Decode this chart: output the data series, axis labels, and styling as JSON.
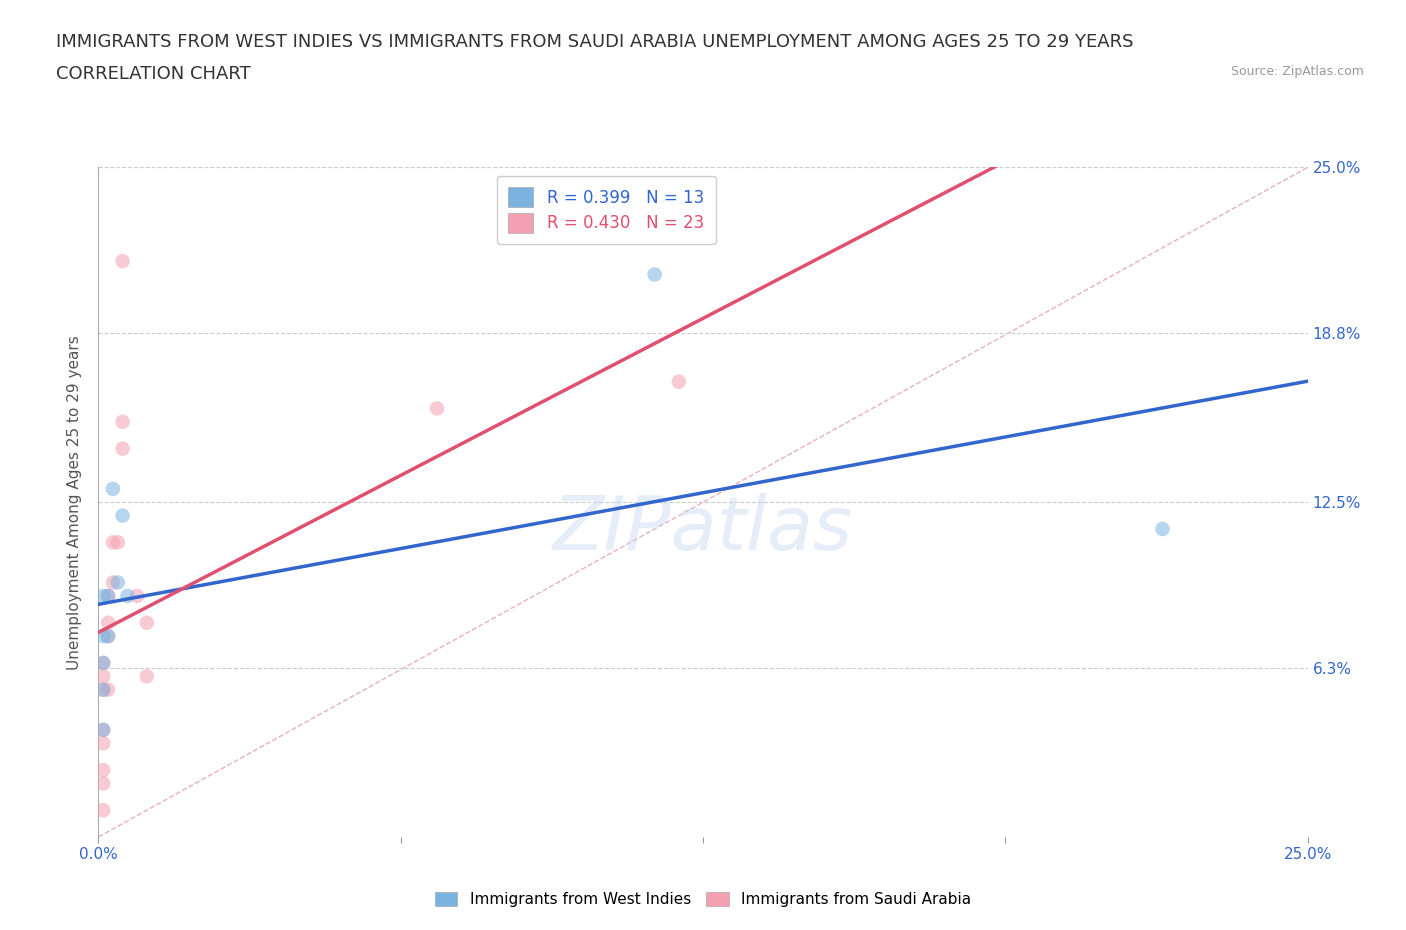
{
  "title_line1": "IMMIGRANTS FROM WEST INDIES VS IMMIGRANTS FROM SAUDI ARABIA UNEMPLOYMENT AMONG AGES 25 TO 29 YEARS",
  "title_line2": "CORRELATION CHART",
  "source": "Source: ZipAtlas.com",
  "ylabel": "Unemployment Among Ages 25 to 29 years",
  "xmin": 0.0,
  "xmax": 0.25,
  "ymin": 0.0,
  "ymax": 0.25,
  "yticks": [
    0.0,
    0.063,
    0.125,
    0.188,
    0.25
  ],
  "ytick_labels": [
    "",
    "6.3%",
    "12.5%",
    "18.8%",
    "25.0%"
  ],
  "xticks": [
    0.0,
    0.0625,
    0.125,
    0.1875,
    0.25
  ],
  "xtick_labels": [
    "0.0%",
    "",
    "",
    "",
    "25.0%"
  ],
  "west_indies_x": [
    0.001,
    0.001,
    0.001,
    0.001,
    0.001,
    0.002,
    0.002,
    0.003,
    0.004,
    0.005,
    0.006,
    0.22,
    0.115
  ],
  "west_indies_y": [
    0.09,
    0.075,
    0.065,
    0.055,
    0.04,
    0.09,
    0.075,
    0.13,
    0.095,
    0.12,
    0.09,
    0.115,
    0.21
  ],
  "saudi_arabia_x": [
    0.001,
    0.001,
    0.001,
    0.001,
    0.001,
    0.001,
    0.001,
    0.001,
    0.002,
    0.002,
    0.002,
    0.002,
    0.003,
    0.003,
    0.004,
    0.005,
    0.005,
    0.005,
    0.008,
    0.01,
    0.01,
    0.07,
    0.12
  ],
  "saudi_arabia_y": [
    0.065,
    0.06,
    0.055,
    0.04,
    0.035,
    0.025,
    0.02,
    0.01,
    0.09,
    0.08,
    0.075,
    0.055,
    0.11,
    0.095,
    0.11,
    0.215,
    0.155,
    0.145,
    0.09,
    0.08,
    0.06,
    0.16,
    0.17
  ],
  "west_indies_color": "#7ab3e0",
  "saudi_arabia_color": "#f4a0b0",
  "west_indies_line_color": "#3366cc",
  "saudi_arabia_line_color": "#e05070",
  "diagonal_color": "#d0d0d0",
  "R_west_indies": 0.399,
  "N_west_indies": 13,
  "R_saudi_arabia": 0.43,
  "N_saudi_arabia": 23,
  "watermark": "ZIPatlas",
  "title_fontsize": 13,
  "label_fontsize": 11,
  "tick_fontsize": 11,
  "marker_size": 110,
  "marker_alpha": 0.55
}
